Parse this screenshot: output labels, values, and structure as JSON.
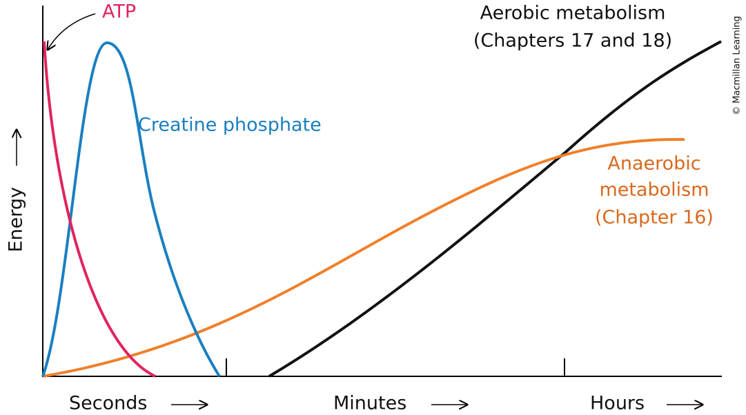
{
  "labels": {
    "atp": "ATP",
    "creatine": "Creatine phosphate",
    "aerobic": [
      "Aerobic metabolism",
      "(Chapters 17 and 18)"
    ],
    "anaerobic": [
      "Anaerobic",
      "metabolism",
      "(Chapter 16)"
    ]
  },
  "axes": {
    "y": "Energy",
    "x": [
      "Seconds",
      "Minutes",
      "Hours"
    ]
  },
  "credit": "© Macmillan Learning"
}
